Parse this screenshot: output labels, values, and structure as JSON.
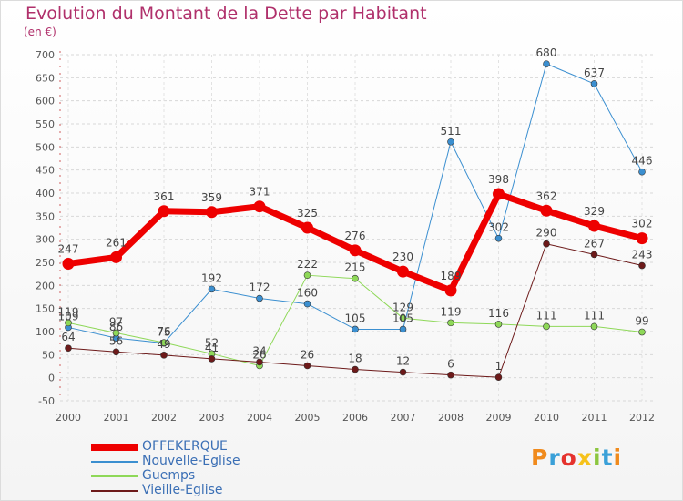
{
  "title": "Evolution du Montant de la Dette par Habitant",
  "subtitle": "(en €)",
  "logo": {
    "text": "Proxiti",
    "colors": [
      "#f08a1c",
      "#3aa0d8",
      "#e5322d",
      "#f6c21a",
      "#8cc63f",
      "#3aa0d8",
      "#f08a1c"
    ]
  },
  "chart_data": {
    "type": "line",
    "x": [
      "2000",
      "2001",
      "2002",
      "2003",
      "2004",
      "2005",
      "2006",
      "2007",
      "2008",
      "2009",
      "2010",
      "2011",
      "2012"
    ],
    "ylim": [
      -50,
      700
    ],
    "yticks": [
      "-50",
      "0",
      "50",
      "100",
      "150",
      "200",
      "250",
      "300",
      "350",
      "400",
      "450",
      "500",
      "550",
      "600",
      "650",
      "700"
    ],
    "grid": true,
    "legend_position": "bottom-left",
    "series": [
      {
        "name": "Nouvelle-Eglise",
        "color": "#3b8fd0",
        "width": 1,
        "values": [
          109,
          86,
          75,
          192,
          172,
          160,
          105,
          105,
          511,
          302,
          680,
          637,
          446
        ]
      },
      {
        "name": "Guemps",
        "color": "#8ed858",
        "width": 1,
        "values": [
          119,
          97,
          76,
          52,
          26,
          222,
          215,
          129,
          119,
          116,
          111,
          111,
          99
        ]
      },
      {
        "name": "Vieille-Eglise",
        "color": "#6d1a1a",
        "width": 1,
        "values": [
          64,
          56,
          49,
          41,
          34,
          26,
          18,
          12,
          6,
          1,
          290,
          267,
          243
        ]
      },
      {
        "name": "OFFEKERQUE",
        "color": "#ee0000",
        "width": 7,
        "values": [
          247,
          261,
          361,
          359,
          371,
          325,
          276,
          230,
          189,
          398,
          362,
          329,
          302
        ]
      }
    ]
  }
}
